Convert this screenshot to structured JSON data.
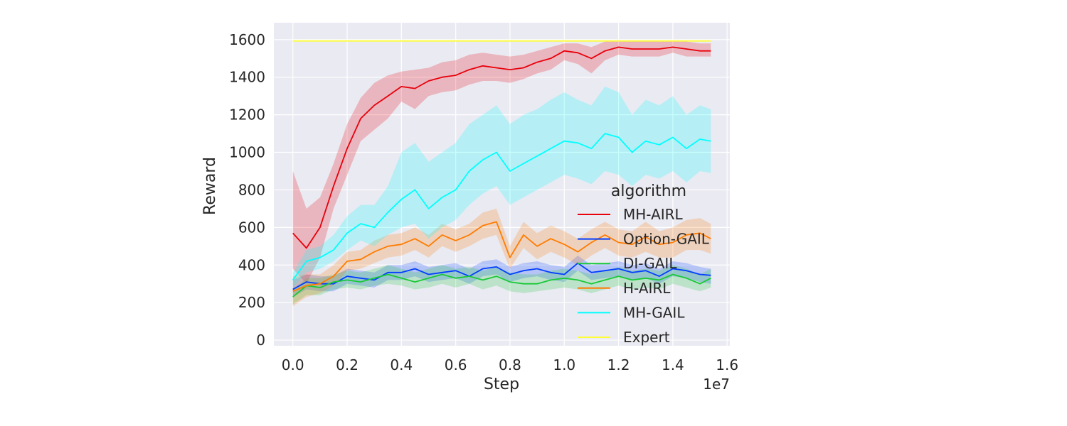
{
  "chart_data": {
    "type": "line",
    "xlabel": "Step",
    "ylabel": "Reward",
    "x_offset_text": "1e7",
    "xlim": [
      -0.07,
      1.61
    ],
    "ylim": [
      -30,
      1690
    ],
    "x_ticks": [
      0.0,
      0.2,
      0.4,
      0.6,
      0.8,
      1.0,
      1.2,
      1.4,
      1.6
    ],
    "x_tick_labels": [
      "0.0",
      "0.2",
      "0.4",
      "0.6",
      "0.8",
      "1.0",
      "1.2",
      "1.4",
      "1.6"
    ],
    "y_ticks": [
      0,
      200,
      400,
      600,
      800,
      1000,
      1200,
      1400,
      1600
    ],
    "y_tick_labels": [
      "0",
      "200",
      "400",
      "600",
      "800",
      "1000",
      "1200",
      "1400",
      "1600"
    ],
    "grid": true,
    "background": "#eaeaf2",
    "legend": {
      "title": "algorithm",
      "placement": "lower-right"
    },
    "x": [
      0.0,
      0.05,
      0.1,
      0.15,
      0.2,
      0.25,
      0.3,
      0.35,
      0.4,
      0.45,
      0.5,
      0.55,
      0.6,
      0.65,
      0.7,
      0.75,
      0.8,
      0.85,
      0.9,
      0.95,
      1.0,
      1.05,
      1.1,
      1.15,
      1.2,
      1.25,
      1.3,
      1.35,
      1.4,
      1.45,
      1.5,
      1.54
    ],
    "series": [
      {
        "name": "MH-AIRL",
        "color": "#e8000b",
        "values": [
          570,
          490,
          600,
          820,
          1020,
          1180,
          1250,
          1300,
          1350,
          1340,
          1380,
          1400,
          1410,
          1440,
          1460,
          1450,
          1440,
          1450,
          1480,
          1500,
          1540,
          1530,
          1500,
          1540,
          1560,
          1550,
          1550,
          1550,
          1560,
          1550,
          1540,
          1540
        ],
        "lower": [
          380,
          300,
          440,
          700,
          880,
          1060,
          1120,
          1180,
          1270,
          1230,
          1300,
          1320,
          1330,
          1360,
          1380,
          1380,
          1370,
          1390,
          1420,
          1440,
          1490,
          1470,
          1420,
          1490,
          1520,
          1510,
          1510,
          1510,
          1530,
          1510,
          1510,
          1510
        ],
        "upper": [
          900,
          700,
          760,
          940,
          1150,
          1290,
          1370,
          1410,
          1430,
          1440,
          1450,
          1480,
          1490,
          1520,
          1530,
          1520,
          1510,
          1520,
          1540,
          1560,
          1580,
          1580,
          1560,
          1590,
          1590,
          1590,
          1590,
          1590,
          1590,
          1590,
          1580,
          1580
        ]
      },
      {
        "name": "Option-GAIL",
        "color": "#023eff",
        "values": [
          270,
          310,
          300,
          300,
          340,
          330,
          320,
          360,
          360,
          380,
          350,
          360,
          370,
          340,
          380,
          390,
          350,
          370,
          380,
          360,
          350,
          410,
          360,
          370,
          380,
          360,
          370,
          340,
          380,
          370,
          350,
          345
        ],
        "lower": [
          230,
          270,
          260,
          260,
          300,
          290,
          280,
          320,
          320,
          340,
          310,
          320,
          330,
          300,
          340,
          350,
          310,
          330,
          340,
          320,
          310,
          370,
          320,
          330,
          340,
          320,
          330,
          300,
          340,
          330,
          310,
          300
        ],
        "upper": [
          320,
          350,
          340,
          340,
          380,
          370,
          360,
          400,
          400,
          420,
          390,
          400,
          410,
          380,
          420,
          430,
          390,
          410,
          420,
          400,
          390,
          450,
          400,
          410,
          420,
          400,
          410,
          380,
          420,
          410,
          390,
          380
        ]
      },
      {
        "name": "DI-GAIL",
        "color": "#1ac938",
        "values": [
          230,
          290,
          280,
          310,
          320,
          310,
          330,
          350,
          330,
          310,
          330,
          350,
          330,
          340,
          320,
          340,
          310,
          300,
          300,
          320,
          330,
          320,
          300,
          320,
          340,
          320,
          330,
          320,
          350,
          330,
          300,
          330
        ],
        "lower": [
          190,
          240,
          240,
          270,
          280,
          270,
          290,
          300,
          290,
          270,
          280,
          300,
          280,
          300,
          270,
          290,
          260,
          250,
          260,
          270,
          280,
          270,
          250,
          270,
          290,
          270,
          280,
          270,
          300,
          280,
          260,
          280
        ],
        "upper": [
          270,
          330,
          330,
          350,
          370,
          360,
          380,
          400,
          380,
          360,
          380,
          400,
          380,
          390,
          370,
          390,
          360,
          350,
          350,
          370,
          380,
          370,
          350,
          370,
          390,
          370,
          380,
          370,
          400,
          380,
          350,
          380
        ]
      },
      {
        "name": "H-AIRL",
        "color": "#ff7c00",
        "values": [
          260,
          290,
          300,
          340,
          420,
          430,
          470,
          500,
          510,
          540,
          500,
          560,
          530,
          560,
          610,
          630,
          440,
          560,
          500,
          540,
          510,
          470,
          520,
          560,
          520,
          510,
          550,
          510,
          520,
          560,
          570,
          540
        ],
        "lower": [
          180,
          230,
          250,
          290,
          370,
          380,
          410,
          440,
          450,
          480,
          440,
          500,
          470,
          500,
          540,
          560,
          380,
          490,
          430,
          470,
          440,
          400,
          450,
          490,
          450,
          440,
          470,
          440,
          440,
          480,
          480,
          460
        ],
        "upper": [
          340,
          350,
          350,
          400,
          470,
          480,
          530,
          560,
          570,
          600,
          560,
          620,
          590,
          620,
          680,
          700,
          500,
          630,
          570,
          610,
          580,
          540,
          590,
          630,
          590,
          580,
          630,
          580,
          600,
          640,
          650,
          620
        ]
      },
      {
        "name": "MH-GAIL",
        "color": "#00ffff",
        "values": [
          320,
          420,
          440,
          480,
          570,
          620,
          600,
          680,
          750,
          800,
          700,
          760,
          800,
          900,
          960,
          1000,
          900,
          940,
          980,
          1020,
          1060,
          1050,
          1020,
          1100,
          1080,
          1000,
          1060,
          1040,
          1080,
          1020,
          1070,
          1060
        ],
        "lower": [
          280,
          360,
          380,
          420,
          480,
          530,
          500,
          560,
          600,
          620,
          540,
          600,
          640,
          720,
          780,
          820,
          720,
          760,
          800,
          840,
          880,
          860,
          830,
          900,
          880,
          820,
          880,
          860,
          900,
          840,
          900,
          890
        ],
        "upper": [
          360,
          480,
          500,
          560,
          660,
          720,
          720,
          820,
          1000,
          1050,
          950,
          1000,
          1050,
          1150,
          1200,
          1250,
          1150,
          1200,
          1230,
          1280,
          1320,
          1280,
          1250,
          1350,
          1320,
          1200,
          1280,
          1250,
          1300,
          1200,
          1250,
          1230
        ]
      },
      {
        "name": "Expert",
        "color": "#ffff33",
        "values": [
          1593,
          1593,
          1593,
          1593,
          1593,
          1593,
          1593,
          1593,
          1593,
          1593,
          1593,
          1593,
          1593,
          1593,
          1593,
          1593,
          1593,
          1593,
          1593,
          1593,
          1593,
          1593,
          1593,
          1593,
          1593,
          1593,
          1593,
          1593,
          1593,
          1593,
          1593,
          1593
        ]
      }
    ]
  }
}
